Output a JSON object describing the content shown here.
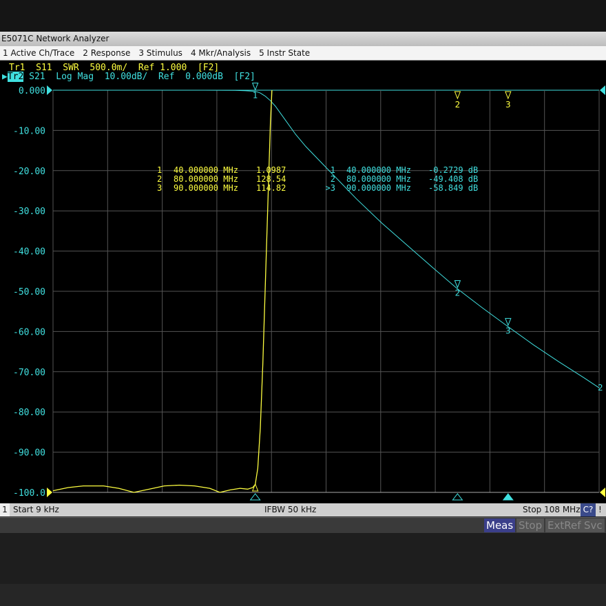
{
  "window": {
    "title": "E5071C Network Analyzer"
  },
  "menu": [
    "1 Active Ch/Trace",
    "2 Response",
    "3 Stimulus",
    "4 Mkr/Analysis",
    "5 Instr State"
  ],
  "traces": {
    "tr1": "Tr1  S11  SWR  500.0m/  Ref 1.000  [F2]",
    "tr2_label": "Tr2",
    "tr2": " S21  Log Mag  10.00dB/  Ref  0.000dB  [F2]"
  },
  "marker_table_s11": [
    {
      "n": "1",
      "freq": "40.000000 MHz",
      "val": "1.0987"
    },
    {
      "n": "2",
      "freq": "80.000000 MHz",
      "val": "128.54"
    },
    {
      "n": "3",
      "freq": "90.000000 MHz",
      "val": "114.82"
    }
  ],
  "marker_table_s21": [
    {
      "n": "1",
      "freq": "40.000000 MHz",
      "val": "-0.2729 dB"
    },
    {
      "n": "2",
      "freq": "80.000000 MHz",
      "val": "-49.408 dB"
    },
    {
      "n": ">3",
      "freq": "90.000000 MHz",
      "val": "-58.849 dB"
    }
  ],
  "status": {
    "channel": "1",
    "start": "Start 9 kHz",
    "ifbw": "IFBW 50 kHz",
    "stop": "Stop 108 MHz",
    "cal": "C?",
    "flag": "!"
  },
  "softkeys": [
    "Meas",
    "Stop",
    "ExtRef",
    "Svc"
  ],
  "colors": {
    "s11": "#ffff40",
    "s21": "#40e0e0",
    "grid": "#555555"
  },
  "chart_data": {
    "type": "line",
    "x_unit": "MHz",
    "xlim": [
      0.009,
      108
    ],
    "ylim_s21": [
      -100,
      0
    ],
    "yticks": [
      "0.000",
      "-10.00",
      "-20.00",
      "-30.00",
      "-40.00",
      "-50.00",
      "-60.00",
      "-70.00",
      "-80.00",
      "-90.00",
      "-100.0"
    ],
    "grid": true,
    "series": [
      {
        "name": "S21",
        "scale": "Log Mag 10.00dB/",
        "x": [
          0.009,
          30,
          36,
          38,
          40,
          41,
          42,
          43,
          44,
          46,
          48,
          50,
          55,
          60,
          65,
          70,
          75,
          80,
          85,
          90,
          95,
          100,
          105,
          108
        ],
        "y": [
          0,
          0,
          -0.05,
          -0.12,
          -0.27,
          -0.7,
          -1.5,
          -2.6,
          -4,
          -7.5,
          -11,
          -14,
          -20.5,
          -27,
          -33,
          -38.5,
          -44,
          -49.4,
          -54.2,
          -58.8,
          -63.3,
          -67.5,
          -71.5,
          -74
        ]
      },
      {
        "name": "S11",
        "scale": "SWR 500.0m/",
        "x": [
          0.009,
          3,
          6,
          10,
          13,
          16,
          19,
          22,
          25,
          28,
          31,
          33,
          35,
          37,
          38.5,
          39.5,
          40,
          40.5,
          41,
          41.5,
          42,
          42.5,
          43,
          43.3
        ],
        "y": [
          1.02,
          1.06,
          1.08,
          1.08,
          1.05,
          1.0,
          1.04,
          1.08,
          1.09,
          1.08,
          1.05,
          1.0,
          1.03,
          1.05,
          1.04,
          1.06,
          1.0987,
          1.3,
          1.8,
          2.6,
          3.6,
          4.6,
          5.6,
          6.0
        ]
      }
    ],
    "markers": [
      {
        "n": "1",
        "x": 40
      },
      {
        "n": "2",
        "x": 80
      },
      {
        "n": "3",
        "x": 90
      }
    ]
  }
}
